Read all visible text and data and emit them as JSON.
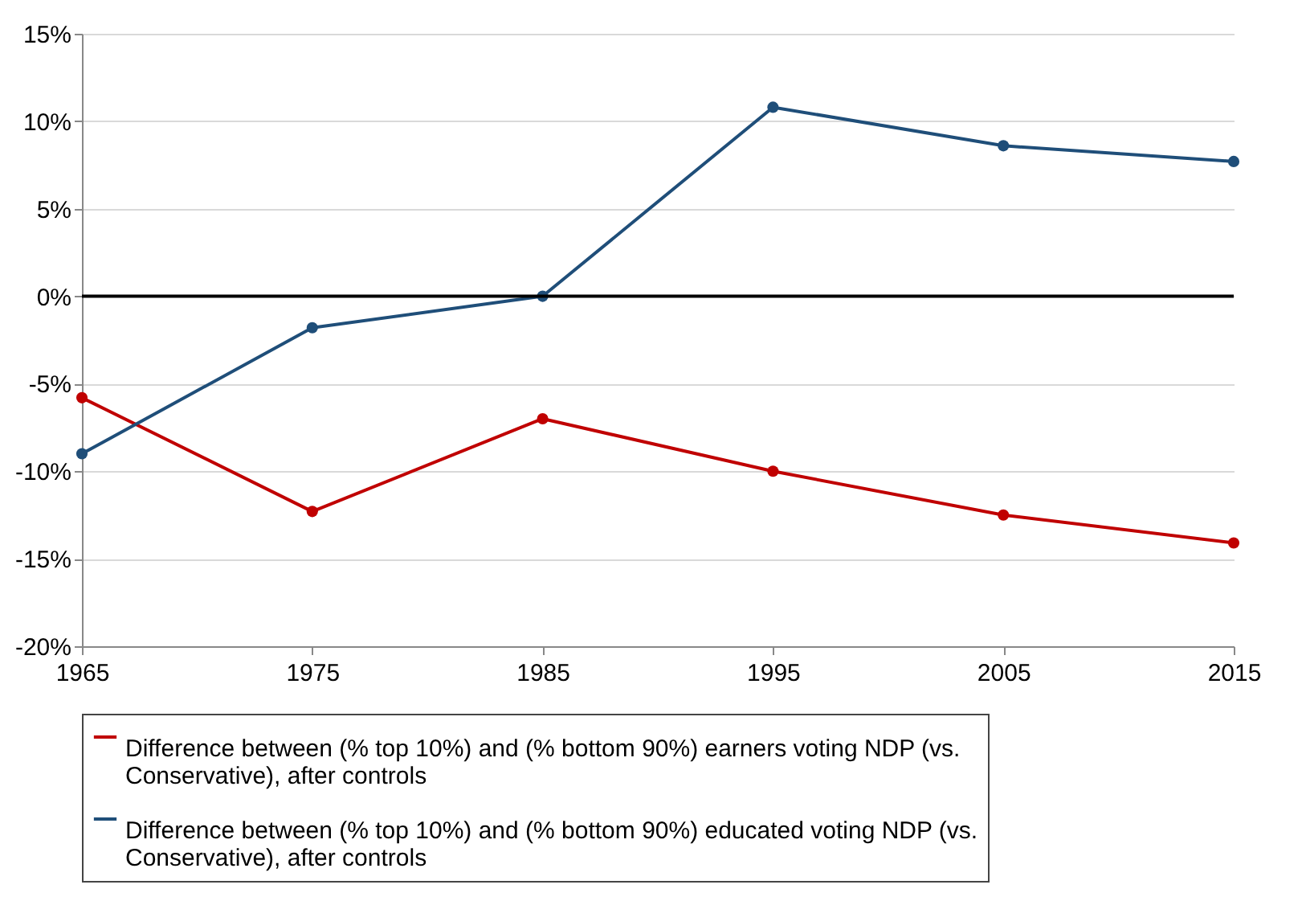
{
  "chart_data": {
    "type": "line",
    "x": [
      1965,
      1975,
      1985,
      1995,
      2005,
      2015
    ],
    "xlim": [
      1965,
      2015
    ],
    "xticks": [
      1965,
      1975,
      1985,
      1995,
      2005,
      2015
    ],
    "ylim": [
      -20,
      15
    ],
    "yticks": [
      {
        "value": -20,
        "label": "-20%"
      },
      {
        "value": -15,
        "label": "-15%"
      },
      {
        "value": -10,
        "label": "-10%"
      },
      {
        "value": -5,
        "label": "-5%"
      },
      {
        "value": 0,
        "label": "0%"
      },
      {
        "value": 5,
        "label": "5%"
      },
      {
        "value": 10,
        "label": "10%"
      },
      {
        "value": 15,
        "label": "15%"
      }
    ],
    "grid": "y",
    "legend": "bottom",
    "marker": "circle",
    "line_style": "solid",
    "ref_lines": [
      {
        "axis": "y",
        "value": 0,
        "color": "#000000"
      }
    ],
    "series": [
      {
        "name": "Difference between (% top 10%) and (% bottom 90%) earners voting NDP (vs. Conservative), after controls",
        "color": "#c00000",
        "values": [
          -5.8,
          -12.3,
          -7.0,
          -10.0,
          -12.5,
          -14.1
        ]
      },
      {
        "name": "Difference between (% top 10%) and (% bottom 90%) educated voting NDP (vs. Conservative), after controls",
        "color": "#1f4e79",
        "values": [
          -9.0,
          -1.8,
          0.0,
          10.8,
          8.6,
          7.7
        ]
      }
    ]
  }
}
